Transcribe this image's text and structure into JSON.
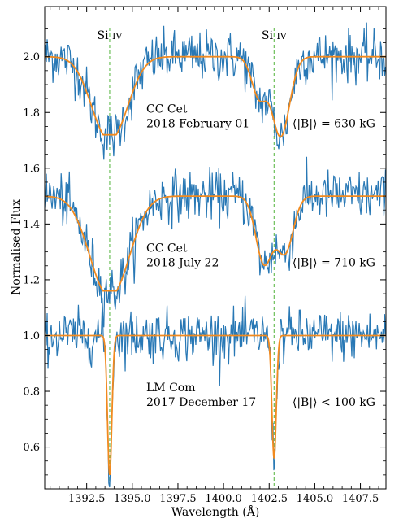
{
  "chart_data": {
    "type": "line",
    "xlabel": "Wavelength (Å)",
    "ylabel": "Normalised Flux",
    "xlim": [
      1390.2,
      1408.9
    ],
    "ylim": [
      0.45,
      2.18
    ],
    "x_ticks": [
      1392.5,
      1395.0,
      1397.5,
      1400.0,
      1402.5,
      1405.0,
      1407.5
    ],
    "x_tick_labels": [
      "1392.5",
      "1395.0",
      "1397.5",
      "1400.0",
      "1402.5",
      "1405.0",
      "1407.5"
    ],
    "y_ticks": [
      0.6,
      0.8,
      1.0,
      1.2,
      1.4,
      1.6,
      1.8,
      2.0
    ],
    "y_tick_labels": [
      "0.6",
      "0.8",
      "1.0",
      "1.2",
      "1.4",
      "1.6",
      "1.8",
      "2.0"
    ],
    "reference_lines": [
      {
        "x": 1393.76,
        "label_main": "Si",
        "label_ion": "IV"
      },
      {
        "x": 1402.77,
        "label_main": "Si",
        "label_ion": "IV"
      }
    ],
    "colors": {
      "observed": "#2878b5",
      "model": "#f28a1e",
      "reference": "#6dbf5a"
    },
    "series": [
      {
        "star": "CC Cet",
        "date": "2018 February 01",
        "field_label": "⟨|B|⟩ = 630 kG",
        "baseline": 2.0,
        "lines": [
          {
            "center": 1393.76,
            "shift": 0.0,
            "depth": 0.28,
            "width": 1.1,
            "split": 0.45
          },
          {
            "center": 1402.77,
            "shift": -0.3,
            "depth": 0.24,
            "width": 0.55,
            "split": 0.5
          },
          {
            "center": 1402.77,
            "shift": 0.55,
            "depth": 0.16,
            "width": 0.45,
            "split": 0.0
          }
        ]
      },
      {
        "star": "CC Cet",
        "date": "2018 July 22",
        "field_label": "⟨|B|⟩ = 710 kG",
        "baseline": 1.5,
        "lines": [
          {
            "center": 1393.76,
            "shift": 0.0,
            "depth": 0.34,
            "width": 1.2,
            "split": 0.5
          },
          {
            "center": 1402.77,
            "shift": -0.55,
            "depth": 0.24,
            "width": 0.45,
            "split": 0.0
          },
          {
            "center": 1402.77,
            "shift": 0.6,
            "depth": 0.2,
            "width": 0.45,
            "split": 0.0
          }
        ]
      },
      {
        "star": "LM Com",
        "date": "2017 December 17",
        "field_label": "⟨|B|⟩ < 100 kG",
        "baseline": 1.0,
        "lines": [
          {
            "center": 1393.76,
            "shift": 0.0,
            "depth": 0.5,
            "width": 0.12,
            "split": 0.0
          },
          {
            "center": 1402.77,
            "shift": 0.0,
            "depth": 0.44,
            "width": 0.12,
            "split": 0.0
          }
        ]
      }
    ]
  }
}
